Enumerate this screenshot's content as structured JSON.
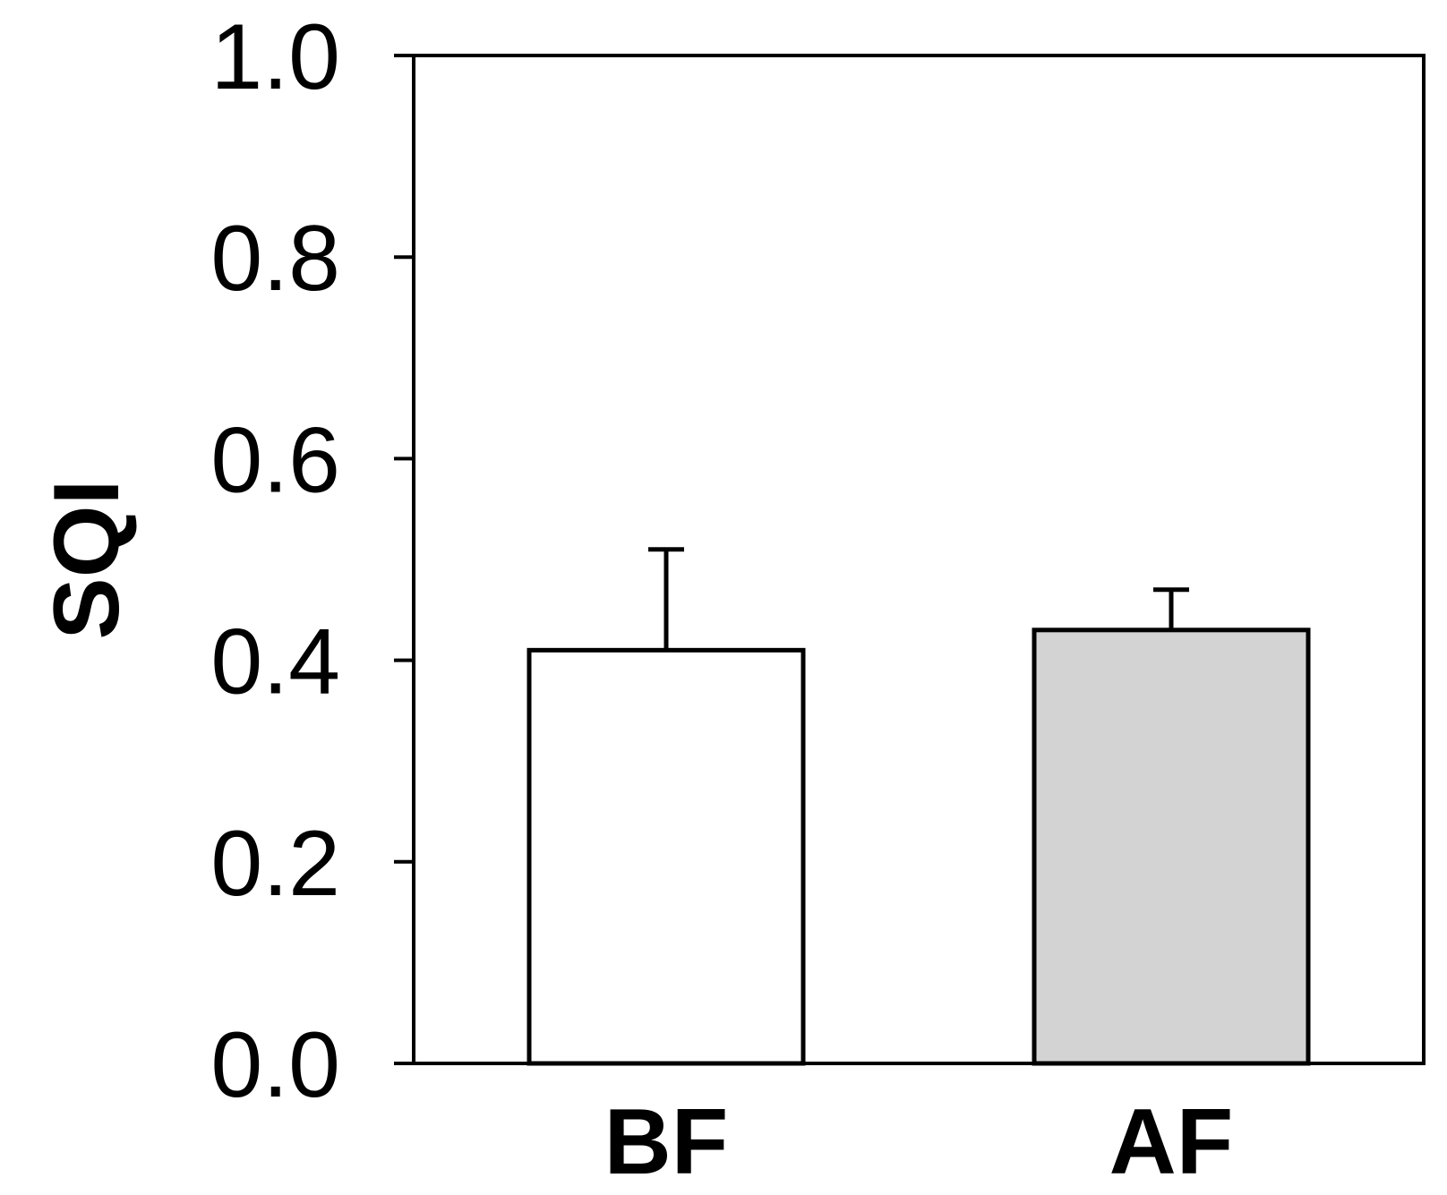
{
  "chart_data": {
    "type": "bar",
    "categories": [
      "BF",
      "AF"
    ],
    "values": [
      0.41,
      0.43
    ],
    "errors": [
      0.1,
      0.04
    ],
    "bar_colors": [
      "#ffffff",
      "#d3d3d3"
    ],
    "title": "",
    "xlabel": "",
    "ylabel": "SQI",
    "ylim": [
      0.0,
      1.0
    ],
    "yticks": [
      "0.0",
      "0.2",
      "0.4",
      "0.6",
      "0.8",
      "1.0"
    ],
    "grid": false,
    "legend": "none"
  }
}
